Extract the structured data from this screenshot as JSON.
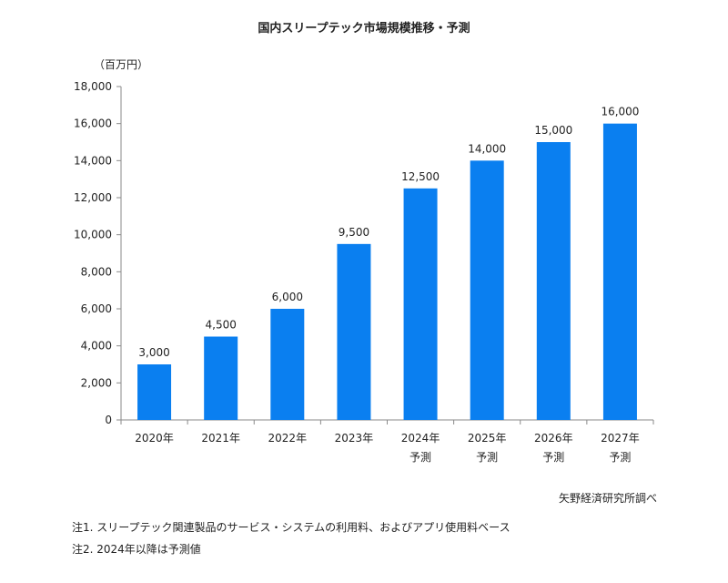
{
  "title": "国内スリープテック市場規模推移・予測",
  "unit": "（百万円）",
  "source": "矢野経済研究所調べ",
  "notes": [
    "注1. スリープテック関連製品のサービス・システムの利用料、およびアプリ使用料ベース",
    "注2. 2024年以降は予測値"
  ],
  "chart_data": {
    "type": "bar",
    "categories": [
      [
        "2020年"
      ],
      [
        "2021年"
      ],
      [
        "2022年"
      ],
      [
        "2023年"
      ],
      [
        "2024年",
        "予測"
      ],
      [
        "2025年",
        "予測"
      ],
      [
        "2026年",
        "予測"
      ],
      [
        "2027年",
        "予測"
      ]
    ],
    "values": [
      3000,
      4500,
      6000,
      9500,
      12500,
      14000,
      15000,
      16000
    ],
    "data_labels": [
      "3,000",
      "4,500",
      "6,000",
      "9,500",
      "12,500",
      "14,000",
      "15,000",
      "16,000"
    ],
    "ylim": [
      0,
      18000
    ],
    "yticks": [
      0,
      2000,
      4000,
      6000,
      8000,
      10000,
      12000,
      14000,
      16000,
      18000
    ],
    "ytick_labels": [
      "0",
      "2,000",
      "4,000",
      "6,000",
      "8,000",
      "10,000",
      "12,000",
      "14,000",
      "16,000",
      "18,000"
    ],
    "grid": false,
    "bar_color": "#0a7ff0"
  }
}
